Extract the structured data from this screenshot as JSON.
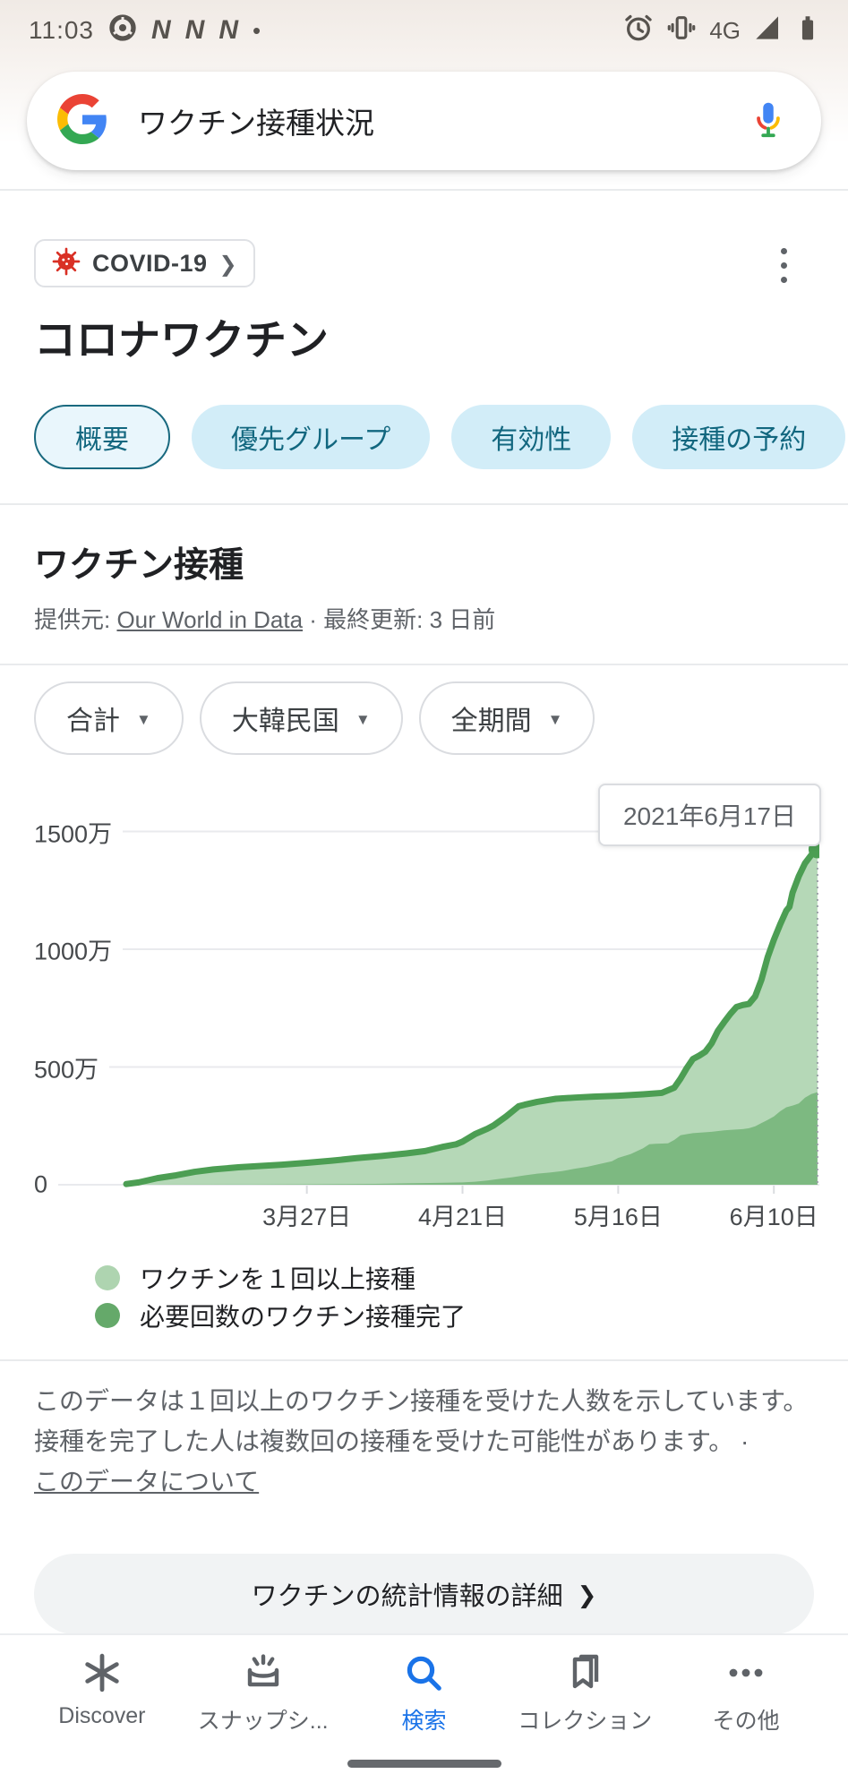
{
  "status_bar": {
    "time": "11:03",
    "left_icons": [
      "chrome-icon",
      "n-notification-icon",
      "n-notification-icon",
      "n-notification-icon",
      "dot-icon"
    ],
    "notification_letter": "N",
    "dot": "•",
    "network_label": "4G",
    "right_icons": [
      "alarm-icon",
      "vibrate-icon",
      "signal-icon",
      "battery-icon"
    ]
  },
  "search": {
    "query": "ワクチン接種状況",
    "icons": [
      "google-g-icon",
      "mic-icon"
    ]
  },
  "topic_chip": {
    "label": "COVID-19",
    "icon": "virus-icon",
    "chevron": "❯"
  },
  "page_title": "コロナワクチン",
  "tabs": [
    {
      "label": "概要",
      "selected": true
    },
    {
      "label": "優先グループ",
      "selected": false
    },
    {
      "label": "有効性",
      "selected": false
    },
    {
      "label": "接種の予約",
      "selected": false
    },
    {
      "label": "",
      "selected": false
    }
  ],
  "section": {
    "heading": "ワクチン接種",
    "source_prefix": "提供元: ",
    "source_link": "Our World in Data",
    "source_suffix": " · 最終更新: 3 日前"
  },
  "filters": [
    {
      "label": "合計",
      "caret": "▼"
    },
    {
      "label": "大韓民国",
      "caret": "▼"
    },
    {
      "label": "全期間",
      "caret": "▼"
    }
  ],
  "chart_data": {
    "type": "area",
    "tooltip": "2021年6月17日",
    "unit": "万",
    "x_axis": {
      "domain_days": [
        0,
        111
      ],
      "start_date": "2021-02-26",
      "end_date": "2021-06-17",
      "tick_days": [
        29,
        54,
        79,
        104
      ],
      "tick_labels": [
        "3月27日",
        "4月21日",
        "5月16日",
        "6月10日"
      ]
    },
    "y_axis": {
      "tick_values": [
        0,
        500,
        1000,
        1500
      ],
      "tick_labels": [
        "0",
        "500万",
        "1000万",
        "1500万"
      ],
      "ylim": [
        0,
        1600
      ]
    },
    "grid": true,
    "cursor": {
      "day": 111,
      "value": 1424,
      "label": "2021年6月17日"
    },
    "series": [
      {
        "name": "ワクチンを１回以上接種",
        "fill_color": "#b5d8b7",
        "line_color": "#4c9e53",
        "legend_color": "#aed4b0",
        "points": [
          [
            0,
            3
          ],
          [
            2,
            10
          ],
          [
            5,
            28
          ],
          [
            8,
            40
          ],
          [
            11,
            55
          ],
          [
            14,
            65
          ],
          [
            18,
            74
          ],
          [
            21,
            79
          ],
          [
            25,
            85
          ],
          [
            29,
            93
          ],
          [
            33,
            102
          ],
          [
            37,
            113
          ],
          [
            41,
            122
          ],
          [
            45,
            133
          ],
          [
            48,
            143
          ],
          [
            51,
            162
          ],
          [
            53,
            172
          ],
          [
            54,
            183
          ],
          [
            56,
            215
          ],
          [
            58,
            238
          ],
          [
            59,
            252
          ],
          [
            61,
            290
          ],
          [
            63,
            333
          ],
          [
            64,
            340
          ],
          [
            66,
            352
          ],
          [
            69,
            365
          ],
          [
            72,
            370
          ],
          [
            75,
            374
          ],
          [
            79,
            378
          ],
          [
            83,
            384
          ],
          [
            86,
            390
          ],
          [
            88,
            412
          ],
          [
            89,
            450
          ],
          [
            90,
            495
          ],
          [
            91,
            534
          ],
          [
            92,
            548
          ],
          [
            93,
            565
          ],
          [
            94,
            600
          ],
          [
            95,
            653
          ],
          [
            96,
            690
          ],
          [
            97,
            725
          ],
          [
            98,
            755
          ],
          [
            99,
            763
          ],
          [
            100,
            768
          ],
          [
            101,
            800
          ],
          [
            102,
            870
          ],
          [
            103,
            966
          ],
          [
            104,
            1040
          ],
          [
            105,
            1105
          ],
          [
            106,
            1164
          ],
          [
            106.5,
            1180
          ],
          [
            107,
            1240
          ],
          [
            108,
            1310
          ],
          [
            109,
            1365
          ],
          [
            110,
            1400
          ],
          [
            111,
            1424
          ]
        ]
      },
      {
        "name": "必要回数のワクチン接種完了",
        "fill_color": "#7db981",
        "line_color": null,
        "legend_color": "#65a96a",
        "points": [
          [
            0,
            0
          ],
          [
            20,
            1
          ],
          [
            29,
            2
          ],
          [
            35,
            3
          ],
          [
            40,
            4
          ],
          [
            45,
            6
          ],
          [
            50,
            8
          ],
          [
            54,
            10
          ],
          [
            56,
            13
          ],
          [
            58,
            18
          ],
          [
            60,
            25
          ],
          [
            62,
            32
          ],
          [
            64,
            40
          ],
          [
            66,
            47
          ],
          [
            68,
            52
          ],
          [
            70,
            58
          ],
          [
            72,
            68
          ],
          [
            74,
            76
          ],
          [
            76,
            88
          ],
          [
            78,
            100
          ],
          [
            79,
            114
          ],
          [
            81,
            130
          ],
          [
            83,
            155
          ],
          [
            84,
            172
          ],
          [
            85,
            174
          ],
          [
            87,
            176
          ],
          [
            88,
            190
          ],
          [
            89,
            210
          ],
          [
            90,
            215
          ],
          [
            91,
            219
          ],
          [
            92,
            221
          ],
          [
            94,
            225
          ],
          [
            96,
            231
          ],
          [
            97,
            233
          ],
          [
            99,
            236
          ],
          [
            100,
            240
          ],
          [
            101,
            248
          ],
          [
            102,
            262
          ],
          [
            103,
            275
          ],
          [
            104,
            290
          ],
          [
            105,
            312
          ],
          [
            106,
            329
          ],
          [
            107,
            336
          ],
          [
            108,
            345
          ],
          [
            109,
            370
          ],
          [
            110,
            385
          ],
          [
            111,
            393
          ]
        ]
      }
    ]
  },
  "disclaimer": {
    "line1": "このデータは１回以上のワクチン接種を受けた人数を示しています。",
    "line2": "接種を完了した人は複数回の接種を受けた可能性があります。 ·",
    "link": "このデータについて"
  },
  "details_button": {
    "label": "ワクチンの統計情報の詳細",
    "chevron": "❯"
  },
  "bottom_nav": [
    {
      "label": "Discover",
      "icon": "discover-icon",
      "active": false
    },
    {
      "label": "スナップシ...",
      "icon": "snapshot-icon",
      "active": false
    },
    {
      "label": "検索",
      "icon": "search-icon",
      "active": true
    },
    {
      "label": "コレクション",
      "icon": "collections-icon",
      "active": false
    },
    {
      "label": "その他",
      "icon": "more-icon",
      "active": false
    }
  ]
}
